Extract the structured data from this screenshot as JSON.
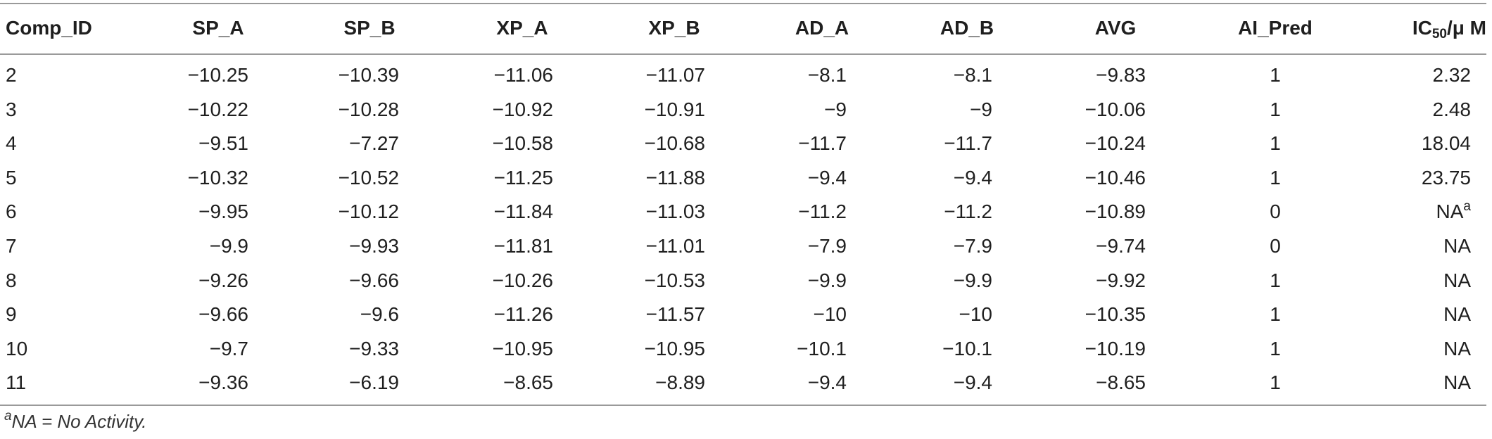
{
  "table": {
    "headers": {
      "comp_id": "Comp_ID",
      "sp_a": "SP_A",
      "sp_b": "SP_B",
      "xp_a": "XP_A",
      "xp_b": "XP_B",
      "ad_a": "AD_A",
      "ad_b": "AD_B",
      "avg": "AVG",
      "ai_pred": "AI_Pred",
      "ic50_prefix": "IC",
      "ic50_sub": "50",
      "ic50_suffix": "/μ M"
    },
    "rows": [
      {
        "id": "2",
        "sp_a": "−10.25",
        "sp_b": "−10.39",
        "xp_a": "−11.06",
        "xp_b": "−11.07",
        "ad_a": "−8.1",
        "ad_b": "−8.1",
        "avg": "−9.83",
        "ai_pred": "1",
        "ic50": "2.32",
        "ic50_sup": ""
      },
      {
        "id": "3",
        "sp_a": "−10.22",
        "sp_b": "−10.28",
        "xp_a": "−10.92",
        "xp_b": "−10.91",
        "ad_a": "−9",
        "ad_b": "−9",
        "avg": "−10.06",
        "ai_pred": "1",
        "ic50": "2.48",
        "ic50_sup": ""
      },
      {
        "id": "4",
        "sp_a": "−9.51",
        "sp_b": "−7.27",
        "xp_a": "−10.58",
        "xp_b": "−10.68",
        "ad_a": "−11.7",
        "ad_b": "−11.7",
        "avg": "−10.24",
        "ai_pred": "1",
        "ic50": "18.04",
        "ic50_sup": ""
      },
      {
        "id": "5",
        "sp_a": "−10.32",
        "sp_b": "−10.52",
        "xp_a": "−11.25",
        "xp_b": "−11.88",
        "ad_a": "−9.4",
        "ad_b": "−9.4",
        "avg": "−10.46",
        "ai_pred": "1",
        "ic50": "23.75",
        "ic50_sup": ""
      },
      {
        "id": "6",
        "sp_a": "−9.95",
        "sp_b": "−10.12",
        "xp_a": "−11.84",
        "xp_b": "−11.03",
        "ad_a": "−11.2",
        "ad_b": "−11.2",
        "avg": "−10.89",
        "ai_pred": "0",
        "ic50": "NA",
        "ic50_sup": "a"
      },
      {
        "id": "7",
        "sp_a": "−9.9",
        "sp_b": "−9.93",
        "xp_a": "−11.81",
        "xp_b": "−11.01",
        "ad_a": "−7.9",
        "ad_b": "−7.9",
        "avg": "−9.74",
        "ai_pred": "0",
        "ic50": "NA",
        "ic50_sup": ""
      },
      {
        "id": "8",
        "sp_a": "−9.26",
        "sp_b": "−9.66",
        "xp_a": "−10.26",
        "xp_b": "−10.53",
        "ad_a": "−9.9",
        "ad_b": "−9.9",
        "avg": "−9.92",
        "ai_pred": "1",
        "ic50": "NA",
        "ic50_sup": ""
      },
      {
        "id": "9",
        "sp_a": "−9.66",
        "sp_b": "−9.6",
        "xp_a": "−11.26",
        "xp_b": "−11.57",
        "ad_a": "−10",
        "ad_b": "−10",
        "avg": "−10.35",
        "ai_pred": "1",
        "ic50": "NA",
        "ic50_sup": ""
      },
      {
        "id": "10",
        "sp_a": "−9.7",
        "sp_b": "−9.33",
        "xp_a": "−10.95",
        "xp_b": "−10.95",
        "ad_a": "−10.1",
        "ad_b": "−10.1",
        "avg": "−10.19",
        "ai_pred": "1",
        "ic50": "NA",
        "ic50_sup": ""
      },
      {
        "id": "11",
        "sp_a": "−9.36",
        "sp_b": "−6.19",
        "xp_a": "−8.65",
        "xp_b": "−8.89",
        "ad_a": "−9.4",
        "ad_b": "−9.4",
        "avg": "−8.65",
        "ai_pred": "1",
        "ic50": "NA",
        "ic50_sup": ""
      }
    ],
    "footnote": {
      "marker": "a",
      "text": "NA = No Activity."
    }
  }
}
